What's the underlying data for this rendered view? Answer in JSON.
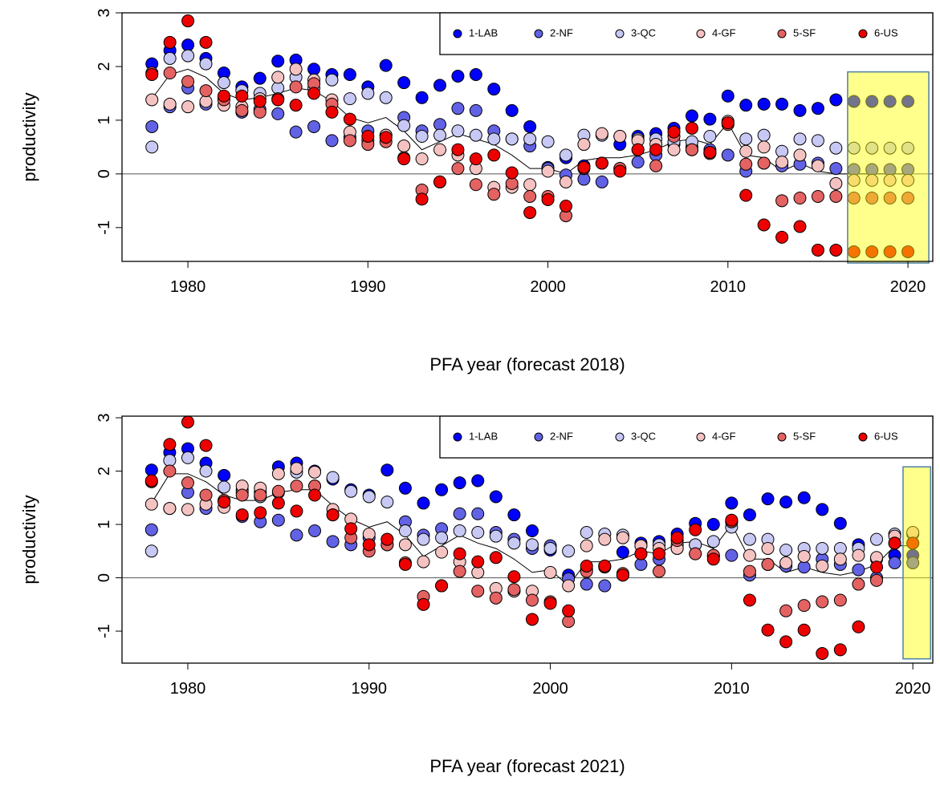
{
  "chart_data": [
    {
      "type": "scatter",
      "xlabel": "PFA year (forecast 2018)",
      "ylabel": "productivity",
      "xlim": [
        1976.34,
        2021.38
      ],
      "ylim": [
        -1.63,
        3.0
      ],
      "xticks": [
        1980,
        1990,
        2000,
        2010,
        2020
      ],
      "yticks": [
        -1,
        0,
        1,
        2,
        3
      ],
      "legend": "top-right",
      "hline": 0,
      "highlight": {
        "xlim": [
          2016.65,
          2021.16
        ],
        "ylim": [
          -1.66,
          1.9
        ],
        "color": "#ffff00"
      },
      "x": [
        1978,
        1979,
        1980,
        1981,
        1982,
        1983,
        1984,
        1985,
        1986,
        1987,
        1988,
        1989,
        1990,
        1991,
        1992,
        1993,
        1994,
        1995,
        1996,
        1997,
        1998,
        1999,
        2000,
        2001,
        2002,
        2003,
        2004,
        2005,
        2006,
        2007,
        2008,
        2009,
        2010,
        2011,
        2012,
        2013,
        2014,
        2015,
        2016,
        2017,
        2018,
        2019,
        2020
      ],
      "series": [
        {
          "name": "1-LAB",
          "color": "#0000ff",
          "values": [
            2.05,
            2.3,
            2.4,
            2.15,
            1.88,
            1.62,
            1.78,
            2.1,
            2.12,
            1.95,
            1.85,
            1.85,
            1.62,
            2.02,
            1.7,
            1.42,
            1.65,
            1.82,
            1.85,
            1.58,
            1.18,
            0.88,
            0.12,
            0.3,
            0.15,
            0.2,
            0.55,
            0.7,
            0.75,
            0.85,
            1.08,
            1.02,
            1.45,
            1.28,
            1.3,
            1.3,
            1.18,
            1.22,
            1.38,
            1.35,
            1.35,
            1.35,
            1.35
          ]
        },
        {
          "name": "2-NF",
          "color": "#6262e6",
          "values": [
            0.88,
            1.25,
            1.6,
            1.3,
            1.42,
            1.15,
            1.2,
            1.12,
            0.78,
            0.88,
            0.62,
            0.68,
            0.8,
            0.72,
            1.05,
            0.8,
            0.92,
            1.22,
            1.18,
            0.8,
            0.65,
            0.52,
            0.1,
            -0.02,
            -0.1,
            -0.15,
            0.1,
            0.22,
            0.35,
            0.55,
            0.5,
            0.45,
            0.35,
            0.05,
            0.2,
            0.15,
            0.18,
            0.2,
            0.1,
            0.08,
            0.08,
            0.08,
            0.08
          ]
        },
        {
          "name": "3-QC",
          "color": "#c8c8f4",
          "values": [
            0.5,
            2.15,
            2.2,
            2.05,
            1.7,
            1.55,
            1.5,
            1.6,
            1.8,
            1.6,
            1.75,
            1.4,
            1.5,
            1.42,
            0.9,
            0.7,
            0.72,
            0.8,
            0.72,
            0.65,
            0.65,
            0.65,
            0.6,
            0.35,
            0.72,
            0.72,
            0.7,
            0.65,
            0.65,
            0.6,
            0.6,
            0.7,
            0.95,
            0.65,
            0.72,
            0.42,
            0.65,
            0.62,
            0.48,
            0.48,
            0.48,
            0.48,
            0.48
          ]
        },
        {
          "name": "4-GF",
          "color": "#f5c2c2",
          "values": [
            1.38,
            1.3,
            1.25,
            1.35,
            1.28,
            1.25,
            1.4,
            1.8,
            1.95,
            1.75,
            1.38,
            0.78,
            0.62,
            0.72,
            0.52,
            0.28,
            0.45,
            0.35,
            0.1,
            -0.25,
            -0.25,
            -0.2,
            0.05,
            -0.15,
            0.55,
            0.75,
            0.7,
            0.62,
            0.55,
            0.45,
            0.45,
            0.4,
            0.98,
            0.42,
            0.5,
            0.22,
            0.35,
            0.15,
            -0.18,
            -0.12,
            -0.12,
            -0.12,
            -0.12
          ]
        },
        {
          "name": "5-SF",
          "color": "#e46262",
          "values": [
            1.88,
            1.88,
            1.72,
            1.55,
            1.38,
            1.18,
            1.15,
            1.4,
            1.62,
            1.68,
            1.3,
            0.62,
            0.55,
            0.6,
            0.3,
            -0.3,
            -0.15,
            0.1,
            -0.2,
            -0.38,
            -0.18,
            -0.42,
            -0.42,
            -0.78,
            0.1,
            0.2,
            0.1,
            0.45,
            0.15,
            0.7,
            0.45,
            0.38,
            0.92,
            0.18,
            0.2,
            -0.5,
            -0.45,
            -0.42,
            -0.42,
            -0.45,
            -0.45,
            -0.45,
            -0.45
          ]
        },
        {
          "name": "6-US",
          "color": "#ee0000",
          "values": [
            1.85,
            2.45,
            2.85,
            2.45,
            1.45,
            1.45,
            1.35,
            1.38,
            1.28,
            1.5,
            1.15,
            1.02,
            0.7,
            0.68,
            0.28,
            -0.47,
            -0.15,
            0.45,
            0.28,
            0.35,
            0.02,
            -0.72,
            -0.48,
            -0.6,
            0.12,
            0.2,
            0.05,
            0.45,
            0.45,
            0.78,
            0.85,
            0.4,
            0.95,
            -0.4,
            -0.95,
            -1.18,
            -0.98,
            -1.42,
            -1.42,
            -1.45,
            -1.45,
            -1.45,
            -1.45
          ]
        }
      ],
      "trend": [
        1.4,
        1.85,
        1.95,
        1.8,
        1.5,
        1.38,
        1.42,
        1.5,
        1.6,
        1.55,
        1.35,
        1.05,
        0.95,
        1.05,
        0.8,
        0.45,
        0.6,
        0.75,
        0.65,
        0.55,
        0.35,
        0.1,
        0.1,
        0.0,
        0.25,
        0.3,
        0.3,
        0.35,
        0.45,
        0.6,
        0.65,
        0.55,
        0.95,
        0.35,
        0.3,
        0.05,
        0.2,
        0.05,
        0.0,
        0.0,
        0.0,
        0.0,
        0.0
      ]
    },
    {
      "type": "scatter",
      "xlabel": "PFA year (forecast 2021)",
      "ylabel": "productivity",
      "xlim": [
        1976.37,
        2021.1
      ],
      "ylim": [
        -1.6,
        3.03
      ],
      "xticks": [
        1980,
        1990,
        2000,
        2010,
        2020
      ],
      "yticks": [
        -1,
        0,
        1,
        2,
        3
      ],
      "legend": "top-right",
      "hline": 0,
      "highlight": {
        "xlim": [
          2019.46,
          2020.98
        ],
        "ylim": [
          -1.52,
          2.08
        ],
        "color": "#ffff00"
      },
      "x": [
        1978,
        1979,
        1980,
        1981,
        1982,
        1983,
        1984,
        1985,
        1986,
        1987,
        1988,
        1989,
        1990,
        1991,
        1992,
        1993,
        1994,
        1995,
        1996,
        1997,
        1998,
        1999,
        2000,
        2001,
        2002,
        2003,
        2004,
        2005,
        2006,
        2007,
        2008,
        2009,
        2010,
        2011,
        2012,
        2013,
        2014,
        2015,
        2016,
        2017,
        2018,
        2019,
        2020
      ],
      "series": [
        {
          "name": "1-LAB",
          "color": "#0000ff",
          "values": [
            2.02,
            2.35,
            2.42,
            2.15,
            1.92,
            1.65,
            1.6,
            2.08,
            2.15,
            2.0,
            1.85,
            1.65,
            1.55,
            2.02,
            1.68,
            1.4,
            1.65,
            1.78,
            1.82,
            1.52,
            1.18,
            0.88,
            0.52,
            0.05,
            0.15,
            0.22,
            0.48,
            0.65,
            0.68,
            0.82,
            1.02,
            1.0,
            1.4,
            1.18,
            1.48,
            1.42,
            1.5,
            1.28,
            1.02,
            0.62,
            0.35,
            0.42,
            0.42
          ]
        },
        {
          "name": "2-NF",
          "color": "#6262e6",
          "values": [
            0.9,
            1.3,
            1.6,
            1.3,
            1.45,
            1.15,
            1.05,
            1.08,
            0.8,
            0.88,
            0.68,
            0.62,
            0.75,
            0.62,
            1.05,
            0.8,
            0.92,
            1.2,
            1.2,
            0.85,
            0.72,
            0.55,
            0.6,
            -0.02,
            -0.12,
            -0.15,
            0.05,
            0.25,
            0.35,
            0.55,
            0.62,
            0.42,
            0.42,
            0.05,
            0.25,
            0.22,
            0.2,
            0.35,
            0.25,
            0.15,
            0.0,
            0.28,
            0.28
          ]
        },
        {
          "name": "3-QC",
          "color": "#c8c8f4",
          "values": [
            0.5,
            2.2,
            2.25,
            2.0,
            1.7,
            1.6,
            1.52,
            1.6,
            1.98,
            1.72,
            1.88,
            1.62,
            1.52,
            1.42,
            0.88,
            0.72,
            0.75,
            0.88,
            0.85,
            0.78,
            0.65,
            0.62,
            0.55,
            0.5,
            0.85,
            0.82,
            0.8,
            0.6,
            0.62,
            0.62,
            0.62,
            0.68,
            0.95,
            0.72,
            0.72,
            0.52,
            0.55,
            0.55,
            0.55,
            0.55,
            0.72,
            0.82,
            0.82
          ]
        },
        {
          "name": "4-GF",
          "color": "#f5c2c2",
          "values": [
            1.38,
            1.3,
            1.28,
            1.38,
            1.32,
            1.72,
            1.68,
            1.95,
            2.05,
            1.98,
            1.28,
            1.1,
            0.82,
            0.72,
            0.62,
            0.3,
            0.48,
            0.3,
            0.1,
            -0.2,
            -0.25,
            -0.25,
            0.1,
            -0.15,
            0.6,
            0.72,
            0.75,
            0.6,
            0.55,
            0.55,
            0.45,
            0.4,
            1.05,
            0.42,
            0.55,
            0.28,
            0.4,
            0.22,
            0.35,
            0.42,
            0.38,
            0.78,
            0.85
          ]
        },
        {
          "name": "5-SF",
          "color": "#e46262",
          "values": [
            1.8,
            2.0,
            1.78,
            1.55,
            1.45,
            1.55,
            1.55,
            1.62,
            1.72,
            1.72,
            1.18,
            0.75,
            0.5,
            0.62,
            0.28,
            -0.35,
            -0.15,
            0.12,
            -0.25,
            -0.38,
            -0.22,
            -0.42,
            -0.45,
            -0.82,
            0.12,
            0.2,
            0.08,
            0.45,
            0.12,
            0.7,
            0.45,
            0.42,
            1.05,
            0.12,
            0.25,
            -0.62,
            -0.52,
            -0.45,
            -0.42,
            -0.12,
            -0.05,
            0.65,
            0.65
          ]
        },
        {
          "name": "6-US",
          "color": "#ee0000",
          "values": [
            1.82,
            2.5,
            2.92,
            2.48,
            1.42,
            1.18,
            1.22,
            1.4,
            1.25,
            1.55,
            1.18,
            0.92,
            0.62,
            0.72,
            0.25,
            -0.5,
            -0.15,
            0.45,
            0.3,
            0.38,
            0.02,
            -0.78,
            -0.48,
            -0.62,
            0.22,
            0.22,
            0.05,
            0.45,
            0.45,
            0.75,
            0.9,
            0.35,
            1.08,
            -0.42,
            -0.98,
            -1.2,
            -0.98,
            -1.42,
            -1.35,
            -0.92,
            0.2,
            0.65,
            0.65
          ]
        }
      ],
      "trend": [
        1.4,
        1.95,
        1.95,
        1.8,
        1.55,
        1.45,
        1.45,
        1.6,
        1.65,
        1.65,
        1.35,
        1.1,
        0.95,
        1.05,
        0.8,
        0.4,
        0.6,
        0.8,
        0.65,
        0.55,
        0.35,
        0.1,
        0.15,
        -0.15,
        0.3,
        0.3,
        0.35,
        0.5,
        0.45,
        0.65,
        0.68,
        0.55,
        1.0,
        0.35,
        0.35,
        0.1,
        0.2,
        0.1,
        0.05,
        0.12,
        0.25,
        0.6,
        0.6
      ]
    }
  ]
}
